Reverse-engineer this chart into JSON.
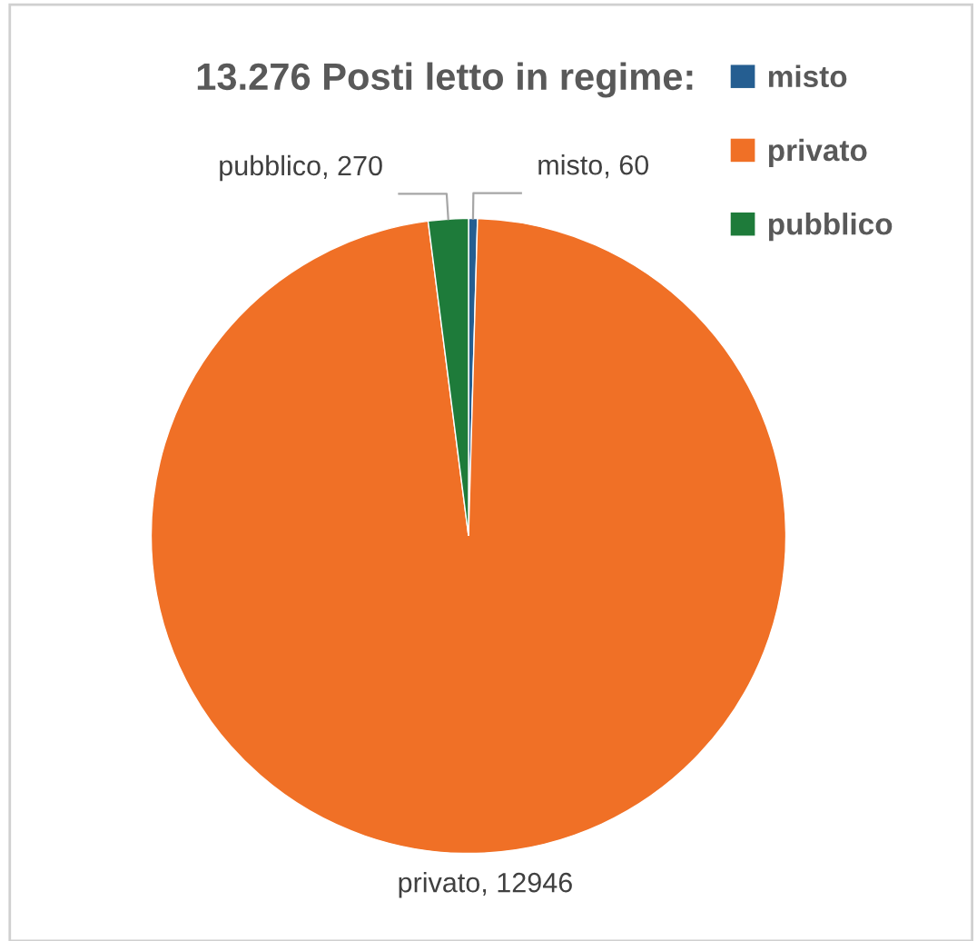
{
  "chart_data": {
    "type": "pie",
    "title": "13.276 Posti letto in regime:",
    "categories": [
      "misto",
      "privato",
      "pubblico"
    ],
    "values": [
      60,
      12946,
      270
    ],
    "colors": [
      "#255e91",
      "#f07026",
      "#1e7b3a"
    ],
    "value_labels": [
      "misto, 60",
      "privato, 12946",
      "pubblico, 270"
    ],
    "legend": "top right"
  }
}
